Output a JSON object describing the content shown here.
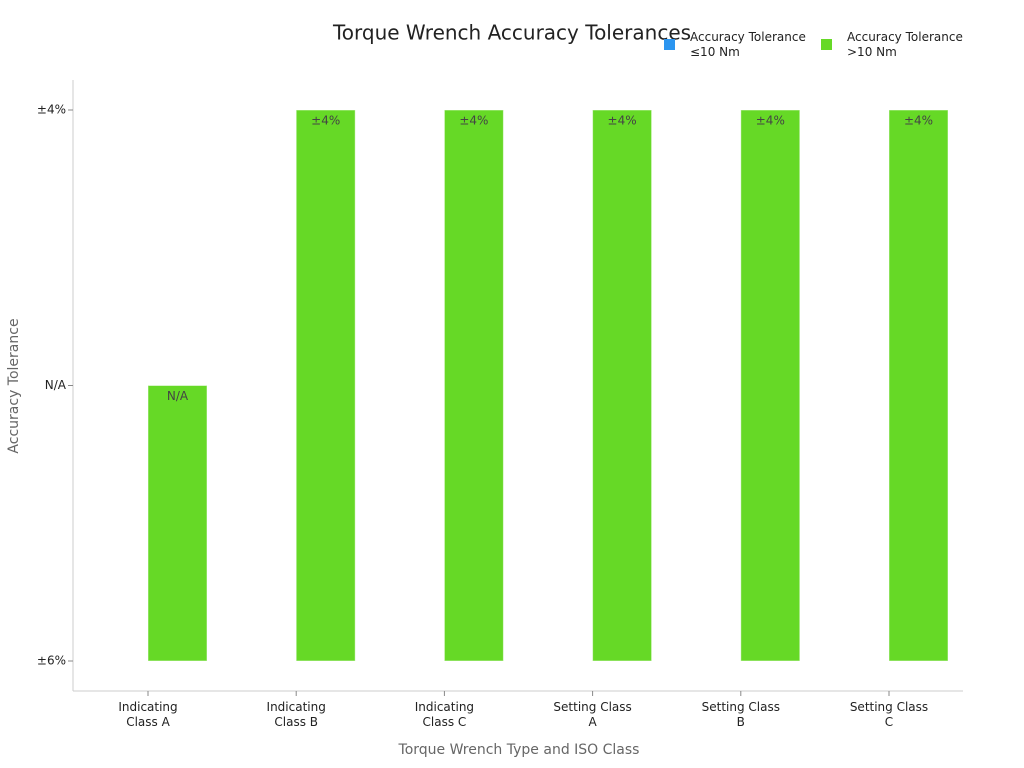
{
  "chart_data": {
    "type": "bar",
    "title": "Torque Wrench Accuracy Tolerances",
    "x_label": "Torque Wrench Type and ISO Class",
    "y_label": "Accuracy Tolerance",
    "categories": [
      "Indicating Class A",
      "Indicating Class B",
      "Indicating Class C",
      "Setting Class A",
      "Setting Class B",
      "Setting Class C"
    ],
    "ycategories": [
      "±6%",
      "N/A",
      "±4%"
    ],
    "series": [
      {
        "name": "Accuracy Tolerance ≤10 Nm",
        "color": "#2b95f0",
        "values": [
          "±6%",
          "±6%",
          "±6%",
          "±6%",
          "±6%",
          "±6%"
        ]
      },
      {
        "name": "Accuracy Tolerance >10 Nm",
        "color": "#66d926",
        "values": [
          "N/A",
          "±4%",
          "±4%",
          "±4%",
          "±4%",
          "±4%"
        ]
      }
    ],
    "legend": "top-right"
  }
}
